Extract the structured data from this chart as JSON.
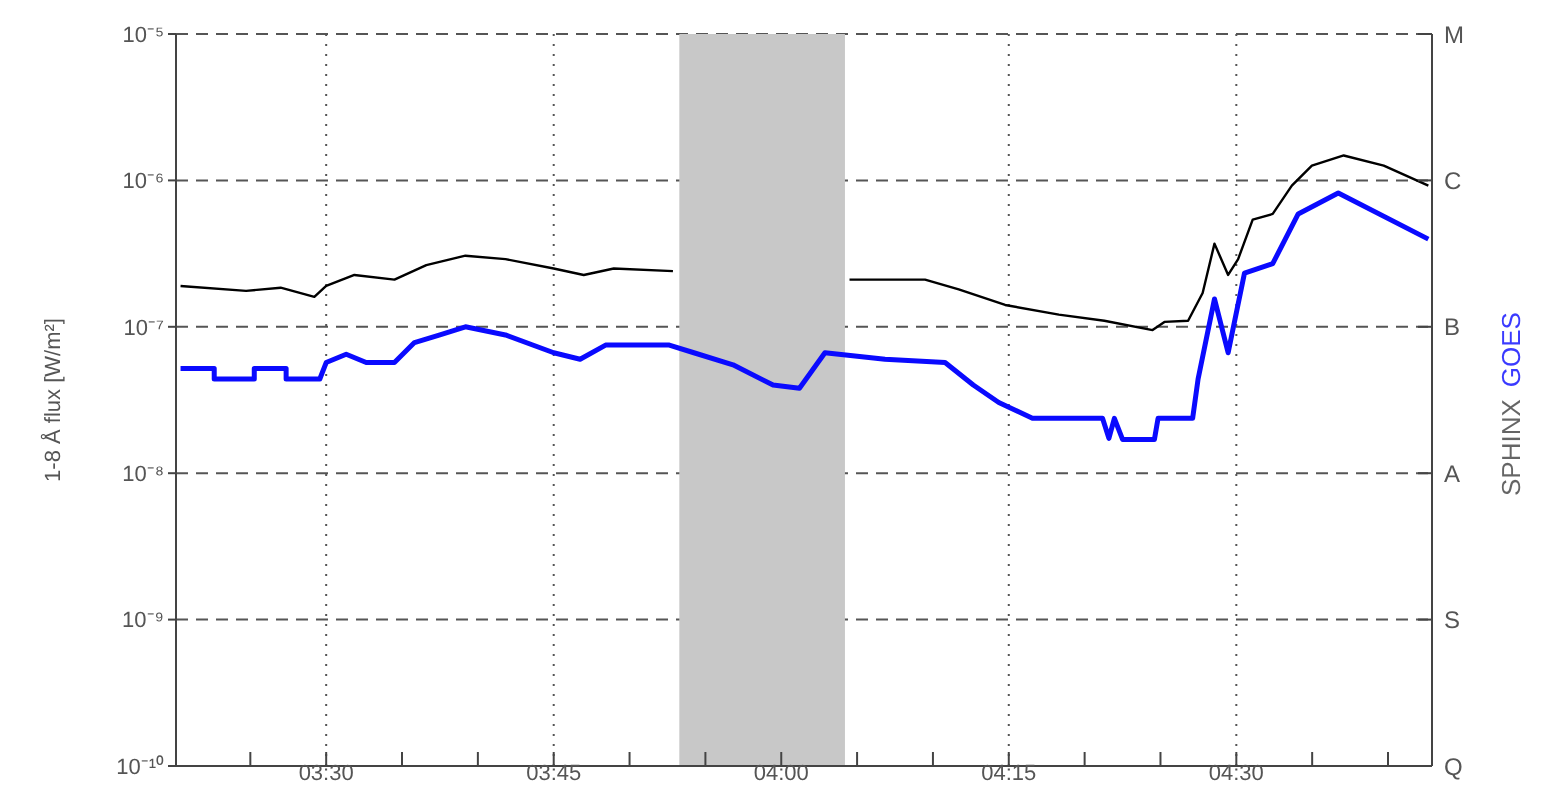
{
  "chart_data": {
    "type": "line",
    "ylabel": "1-8 Å flux [W/m²]",
    "log": "y",
    "grid": true,
    "legend": "right",
    "marker": "none",
    "xlim": [
      3.335,
      4.715
    ],
    "xticks": [
      {
        "value": 3.41667,
        "label": null
      },
      {
        "value": 3.5,
        "label": "03:30"
      },
      {
        "value": 3.58333,
        "label": null
      },
      {
        "value": 3.66667,
        "label": null
      },
      {
        "value": 3.75,
        "label": "03:45"
      },
      {
        "value": 3.83333,
        "label": null
      },
      {
        "value": 3.91667,
        "label": null
      },
      {
        "value": 4,
        "label": "04:00"
      },
      {
        "value": 4.08333,
        "label": null
      },
      {
        "value": 4.16667,
        "label": null
      },
      {
        "value": 4.25,
        "label": "04:15"
      },
      {
        "value": 4.33333,
        "label": null
      },
      {
        "value": 4.41667,
        "label": null
      },
      {
        "value": 4.5,
        "label": "04:30"
      },
      {
        "value": 4.58333,
        "label": null
      },
      {
        "value": 4.66667,
        "label": null
      }
    ],
    "ylim": [
      1e-10,
      1e-05
    ],
    "yticks": [
      {
        "value": 1e-10,
        "label": "10⁻¹⁰"
      },
      {
        "value": 1e-09,
        "label": "10⁻⁹"
      },
      {
        "value": 1e-08,
        "label": "10⁻⁸"
      },
      {
        "value": 1e-07,
        "label": "10⁻⁷"
      },
      {
        "value": 1e-06,
        "label": "10⁻⁶"
      },
      {
        "value": 1e-05,
        "label": "10⁻⁵"
      }
    ],
    "annotations": [
      "Q",
      "S",
      "A",
      "B",
      "C",
      "M"
    ],
    "bands": [
      {
        "axis": "x",
        "from": 3.888,
        "to": 4.07,
        "color": "#c8c8c8"
      }
    ],
    "series": [
      {
        "name": "SPHINX",
        "color": "#000000",
        "x": [
          3.34,
          3.412,
          3.45,
          3.487,
          3.5,
          3.531,
          3.575,
          3.61,
          3.653,
          3.697,
          3.75,
          3.783,
          3.816,
          3.881,
          3.98,
          4.075,
          4.158,
          4.195,
          4.246,
          4.305,
          4.355,
          4.408,
          4.421,
          4.447,
          4.463,
          4.476,
          4.491,
          4.502,
          4.518,
          4.54,
          4.561,
          4.583,
          4.618,
          4.662,
          4.711
        ],
        "values": [
          1.9e-07,
          1.76e-07,
          1.85e-07,
          1.6e-07,
          1.9e-07,
          2.26e-07,
          2.1e-07,
          2.64e-07,
          3.06e-07,
          2.9e-07,
          2.5e-07,
          2.26e-07,
          2.5e-07,
          2.4e-07,
          null,
          2.1e-07,
          2.1e-07,
          1.8e-07,
          1.41e-07,
          1.21e-07,
          1.1e-07,
          9.5e-08,
          1.08e-07,
          1.1e-07,
          1.7e-07,
          3.7e-07,
          2.26e-07,
          2.9e-07,
          5.4e-07,
          5.9e-07,
          9.2e-07,
          1.26e-06,
          1.48e-06,
          1.26e-06,
          9.2e-07
        ]
      },
      {
        "name": "GOES",
        "color": "#0a0aff",
        "x": [
          3.34,
          3.377,
          3.377,
          3.421,
          3.421,
          3.456,
          3.456,
          3.493,
          3.5,
          3.522,
          3.544,
          3.575,
          3.597,
          3.625,
          3.653,
          3.697,
          3.75,
          3.779,
          3.807,
          3.877,
          3.904,
          3.947,
          3.991,
          4.02,
          4.048,
          4.114,
          4.18,
          4.211,
          4.239,
          4.276,
          4.353,
          4.36,
          4.366,
          4.375,
          4.41,
          4.414,
          4.452,
          4.458,
          4.476,
          4.491,
          4.509,
          4.54,
          4.568,
          4.612,
          4.711
        ],
        "values": [
          5.2e-08,
          5.2e-08,
          4.4e-08,
          4.4e-08,
          5.2e-08,
          5.2e-08,
          4.4e-08,
          4.4e-08,
          5.7e-08,
          6.5e-08,
          5.7e-08,
          5.7e-08,
          7.8e-08,
          8.8e-08,
          1e-07,
          8.8e-08,
          6.65e-08,
          6e-08,
          7.5e-08,
          7.5e-08,
          6.65e-08,
          5.5e-08,
          4e-08,
          3.8e-08,
          6.65e-08,
          6e-08,
          5.7e-08,
          4e-08,
          3.04e-08,
          2.37e-08,
          2.37e-08,
          1.73e-08,
          2.37e-08,
          1.7e-08,
          1.7e-08,
          2.37e-08,
          2.37e-08,
          4.4e-08,
          1.55e-07,
          6.65e-08,
          2.33e-07,
          2.7e-07,
          5.9e-07,
          8.2e-07,
          3.97e-07
        ]
      }
    ]
  }
}
